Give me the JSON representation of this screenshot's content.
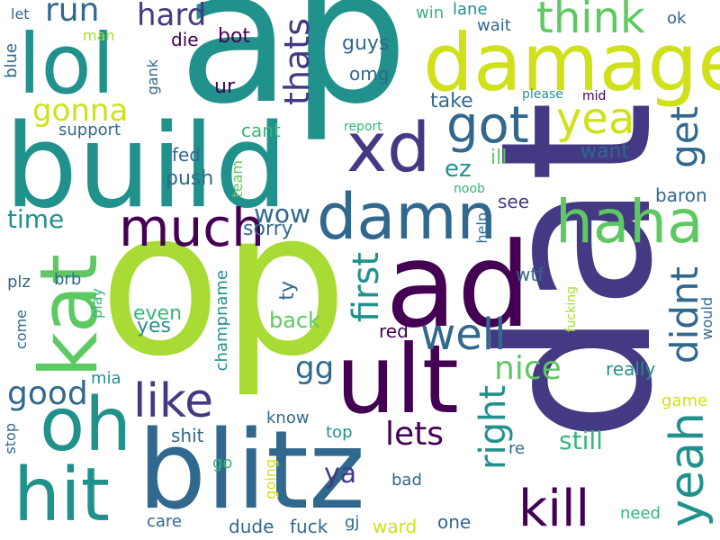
{
  "words": {
    "dat": "dat",
    "op": "op",
    "ap": "ap",
    "build": "build",
    "blitz": "blitz",
    "ad": "ad",
    "ult": "ult",
    "damage": "damage",
    "lol": "lol",
    "kat": "kat",
    "oh": "oh",
    "hit": "hit",
    "haha": "haha",
    "damn": "damn",
    "xd": "xd",
    "much": "much",
    "got": "got",
    "yea": "yea",
    "think": "think",
    "yeah": "yeah",
    "kill": "kill",
    "like": "like",
    "well": "well",
    "good": "good",
    "get": "get",
    "didnt": "didnt",
    "nice": "nice",
    "first": "first",
    "right": "right",
    "thats": "thats",
    "gonna": "gonna",
    "hard": "hard",
    "run": "run",
    "lets": "lets",
    "ya": "ya",
    "time": "time",
    "wow": "wow",
    "gg": "gg",
    "ez": "ez",
    "still": "still",
    "sorry": "sorry",
    "back": "back",
    "even": "even",
    "yes": "yes",
    "fed": "fed",
    "push": "push",
    "bot": "bot",
    "die": "die",
    "ur": "ur",
    "guys": "guys",
    "omg": "omg",
    "take": "take",
    "want": "want",
    "support": "support",
    "cant": "cant",
    "ill": "ill",
    "see": "see",
    "baron": "baron",
    "really": "really",
    "red": "red",
    "wtf": "wtf",
    "mia": "mia",
    "plz": "plz",
    "brb": "brb",
    "ty": "ty",
    "know": "know",
    "shit": "shit",
    "top": "top",
    "re": "re",
    "go": "go",
    "bad": "bad",
    "gj": "gj",
    "dude": "dude",
    "fuck": "fuck",
    "ward": "ward",
    "one": "one",
    "need": "need",
    "care": "care",
    "game": "game",
    "stop": "stop",
    "come": "come",
    "play": "play",
    "champname": "champname",
    "going": "going",
    "win": "win",
    "lane": "lane",
    "wait": "wait",
    "ok": "ok",
    "please": "please",
    "mid": "mid",
    "report": "report",
    "man": "man",
    "let": "let",
    "blue": "blue",
    "gank": "gank",
    "team": "team",
    "noob": "noob",
    "help": "help",
    "fucking": "fucking",
    "would": "would"
  },
  "palette": {
    "dark_purple": "#440154",
    "indigo": "#443a83",
    "blue": "#31688e",
    "teal": "#21918c",
    "green_teal": "#35b779",
    "green": "#5ec962",
    "lime": "#a8db34",
    "yellow": "#d0e11c"
  }
}
